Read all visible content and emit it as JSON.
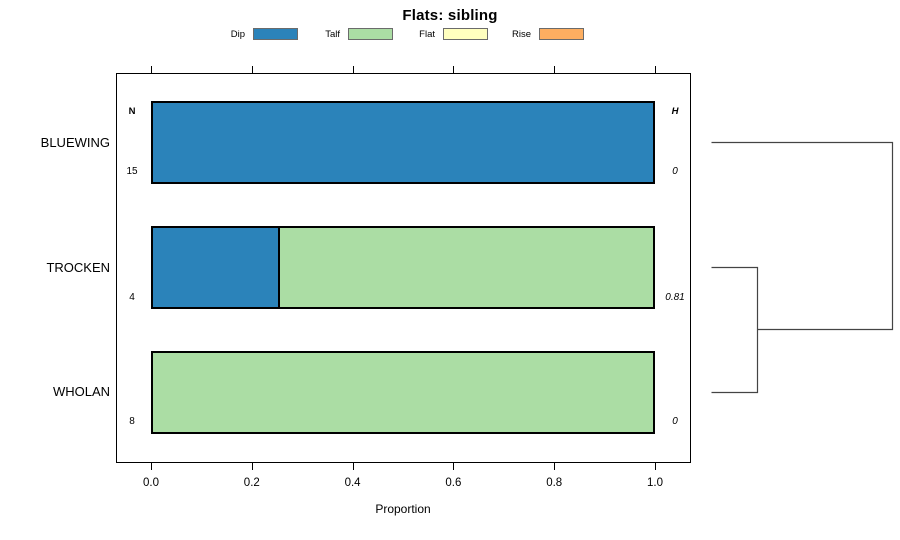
{
  "title": "Flats: sibling",
  "legend": {
    "items": [
      {
        "label": "Dip",
        "color": "#2B83BA"
      },
      {
        "label": "Talf",
        "color": "#ABDDA4"
      },
      {
        "label": "Flat",
        "color": "#FFFFBF"
      },
      {
        "label": "Rise",
        "color": "#FDAE61"
      }
    ],
    "swatch_border_color": "#6b6b6b"
  },
  "columns": {
    "n_header": "N",
    "h_header": "H"
  },
  "xlabel": "Proportion",
  "chart_data": {
    "type": "bar",
    "orientation": "horizontal",
    "stacked": true,
    "title": "Flats: sibling",
    "xlabel": "Proportion",
    "xlim": [
      0.0,
      1.0
    ],
    "x_ticks": [
      0.0,
      0.2,
      0.4,
      0.6,
      0.8,
      1.0
    ],
    "x_tick_labels": [
      "0.0",
      "0.2",
      "0.4",
      "0.6",
      "0.8",
      "1.0"
    ],
    "grid": false,
    "legend_position": "top",
    "categories": [
      "BLUEWING",
      "TROCKEN",
      "WHOLAN"
    ],
    "series": [
      {
        "name": "Dip",
        "values": [
          1.0,
          0.25,
          0.0
        ]
      },
      {
        "name": "Talf",
        "values": [
          0.0,
          0.75,
          1.0
        ]
      },
      {
        "name": "Flat",
        "values": [
          0.0,
          0.0,
          0.0
        ]
      },
      {
        "name": "Rise",
        "values": [
          0.0,
          0.0,
          0.0
        ]
      }
    ],
    "rows": [
      {
        "label": "BLUEWING",
        "n": "15",
        "h": "0",
        "segments": [
          {
            "name": "Dip",
            "value": 1.0
          }
        ]
      },
      {
        "label": "TROCKEN",
        "n": "4",
        "h": "0.81",
        "segments": [
          {
            "name": "Dip",
            "value": 0.25
          },
          {
            "name": "Talf",
            "value": 0.75
          }
        ]
      },
      {
        "label": "WHOLAN",
        "n": "8",
        "h": "0",
        "segments": [
          {
            "name": "Talf",
            "value": 1.0
          }
        ]
      }
    ],
    "dendrogram": {
      "side": "right",
      "leaf_order": [
        "BLUEWING",
        "TROCKEN",
        "WHOLAN"
      ],
      "merges": [
        {
          "members": [
            "TROCKEN",
            "WHOLAN"
          ],
          "relative_height": 0.25
        },
        {
          "members": [
            "BLUEWING",
            "TROCKEN+WHOLAN"
          ],
          "relative_height": 1.0
        }
      ]
    }
  }
}
